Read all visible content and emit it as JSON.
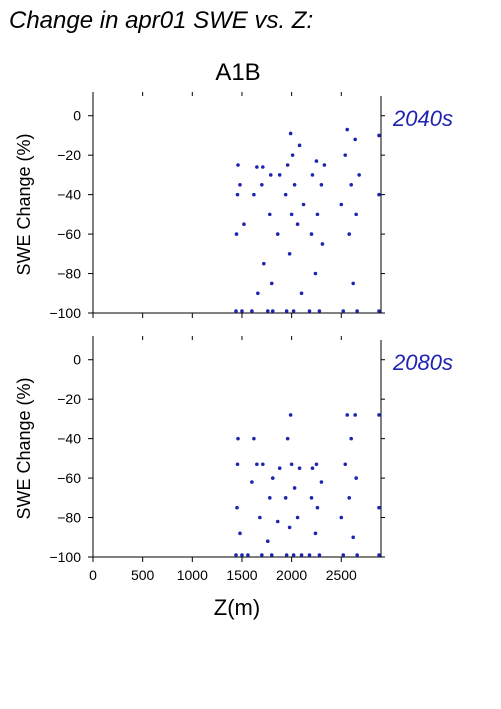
{
  "page_title": "Change in apr01 SWE vs. Z:",
  "scenario_label": "A1B",
  "colors": {
    "points": "#1f24b0",
    "period_label": "#1f24b0",
    "axes": "#000000"
  },
  "chart_data": [
    {
      "type": "scatter",
      "period_label": "2040s",
      "ylabel": "SWE Change (%)",
      "xlabel": "",
      "xlim": [
        0,
        2900
      ],
      "ylim": [
        -100,
        10
      ],
      "yticks": [
        0,
        -20,
        -40,
        -60,
        -80,
        -100
      ],
      "ytick_labels": [
        "0",
        "−20",
        "−40",
        "−60",
        "−80",
        "−100"
      ],
      "xticks": [
        0,
        500,
        1000,
        1500,
        2000,
        2500
      ],
      "xtick_labels": [],
      "grid": false,
      "series": [
        {
          "points": [
            [
              1440,
              -99
            ],
            [
              1445,
              -60
            ],
            [
              1455,
              -40
            ],
            [
              1460,
              -25
            ],
            [
              1480,
              -35
            ],
            [
              1500,
              -99
            ],
            [
              1520,
              -55
            ],
            [
              1600,
              -99
            ],
            [
              1620,
              -40
            ],
            [
              1650,
              -26
            ],
            [
              1660,
              -90
            ],
            [
              1700,
              -35
            ],
            [
              1710,
              -26
            ],
            [
              1720,
              -75
            ],
            [
              1760,
              -99
            ],
            [
              1780,
              -50
            ],
            [
              1790,
              -30
            ],
            [
              1800,
              -85
            ],
            [
              1810,
              -99
            ],
            [
              1860,
              -60
            ],
            [
              1880,
              -30
            ],
            [
              1940,
              -40
            ],
            [
              1950,
              -99
            ],
            [
              1960,
              -25
            ],
            [
              1980,
              -70
            ],
            [
              1990,
              -9
            ],
            [
              2000,
              -50
            ],
            [
              2010,
              -20
            ],
            [
              2020,
              -99
            ],
            [
              2030,
              -35
            ],
            [
              2060,
              -55
            ],
            [
              2080,
              -15
            ],
            [
              2100,
              -90
            ],
            [
              2120,
              -45
            ],
            [
              2180,
              -99
            ],
            [
              2200,
              -60
            ],
            [
              2210,
              -30
            ],
            [
              2240,
              -80
            ],
            [
              2250,
              -23
            ],
            [
              2260,
              -50
            ],
            [
              2280,
              -99
            ],
            [
              2300,
              -35
            ],
            [
              2310,
              -65
            ],
            [
              2330,
              -25
            ],
            [
              2500,
              -45
            ],
            [
              2520,
              -99
            ],
            [
              2540,
              -20
            ],
            [
              2560,
              -7
            ],
            [
              2580,
              -60
            ],
            [
              2600,
              -35
            ],
            [
              2620,
              -85
            ],
            [
              2640,
              -12
            ],
            [
              2650,
              -50
            ],
            [
              2660,
              -99
            ],
            [
              2680,
              -30
            ],
            [
              2880,
              -40
            ],
            [
              2880,
              -99
            ],
            [
              2880,
              -10
            ]
          ]
        }
      ]
    },
    {
      "type": "scatter",
      "period_label": "2080s",
      "ylabel": "SWE Change (%)",
      "xlabel": "Z(m)",
      "xlim": [
        0,
        2900
      ],
      "ylim": [
        -100,
        10
      ],
      "yticks": [
        0,
        -20,
        -40,
        -60,
        -80,
        -100
      ],
      "ytick_labels": [
        "0",
        "−20",
        "−40",
        "−60",
        "−80",
        "−100"
      ],
      "xticks": [
        0,
        500,
        1000,
        1500,
        2000,
        2500
      ],
      "xtick_labels": [
        "0",
        "500",
        "1000",
        "1500",
        "2000",
        "2500"
      ],
      "grid": false,
      "series": [
        {
          "points": [
            [
              1440,
              -99
            ],
            [
              1450,
              -75
            ],
            [
              1455,
              -53
            ],
            [
              1460,
              -40
            ],
            [
              1480,
              -88
            ],
            [
              1500,
              -99
            ],
            [
              1560,
              -99
            ],
            [
              1600,
              -62
            ],
            [
              1620,
              -40
            ],
            [
              1650,
              -53
            ],
            [
              1680,
              -80
            ],
            [
              1700,
              -99
            ],
            [
              1710,
              -53
            ],
            [
              1760,
              -92
            ],
            [
              1780,
              -70
            ],
            [
              1800,
              -99
            ],
            [
              1810,
              -60
            ],
            [
              1860,
              -82
            ],
            [
              1880,
              -55
            ],
            [
              1940,
              -70
            ],
            [
              1950,
              -99
            ],
            [
              1960,
              -40
            ],
            [
              1980,
              -85
            ],
            [
              1990,
              -28
            ],
            [
              2000,
              -53
            ],
            [
              2020,
              -99
            ],
            [
              2030,
              -65
            ],
            [
              2060,
              -80
            ],
            [
              2080,
              -55
            ],
            [
              2100,
              -99
            ],
            [
              2180,
              -99
            ],
            [
              2200,
              -70
            ],
            [
              2210,
              -55
            ],
            [
              2240,
              -88
            ],
            [
              2250,
              -53
            ],
            [
              2260,
              -75
            ],
            [
              2280,
              -99
            ],
            [
              2300,
              -62
            ],
            [
              2500,
              -80
            ],
            [
              2520,
              -99
            ],
            [
              2540,
              -53
            ],
            [
              2560,
              -28
            ],
            [
              2580,
              -70
            ],
            [
              2600,
              -40
            ],
            [
              2620,
              -90
            ],
            [
              2640,
              -28
            ],
            [
              2650,
              -60
            ],
            [
              2660,
              -99
            ],
            [
              2880,
              -28
            ],
            [
              2880,
              -99
            ],
            [
              2880,
              -75
            ]
          ]
        }
      ]
    }
  ]
}
